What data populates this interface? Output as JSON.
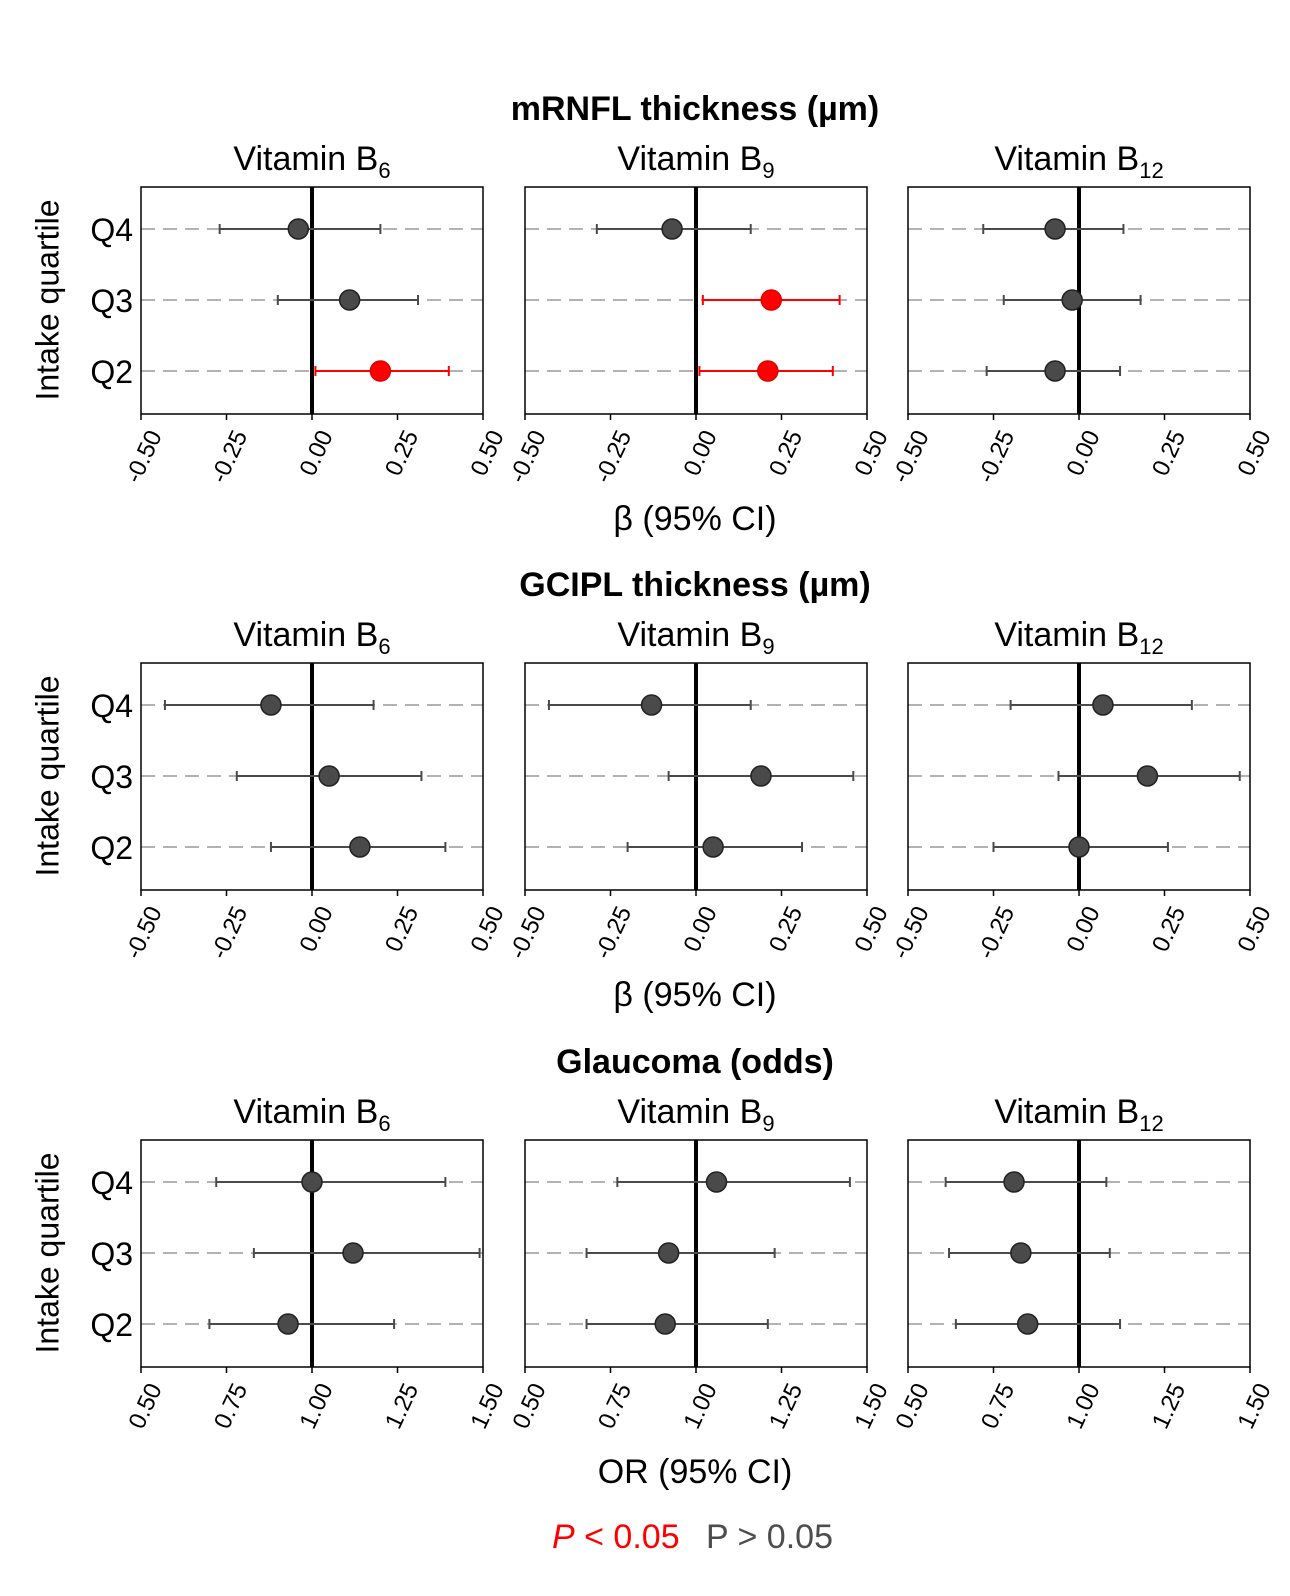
{
  "legend": {
    "sig_p": "P",
    "sig_rest": " < 0.05",
    "ns": "P > 0.05",
    "sig_color": "#ff0000",
    "ns_color": "#4a4a4a"
  },
  "y_axis_label": "Intake quartile",
  "chart_data": [
    {
      "type": "forest",
      "title": "mRNFL thickness (µm)",
      "xlabel": "β (95% CI)",
      "xlim": [
        -0.5,
        0.5
      ],
      "ref_line": 0,
      "xticks": [
        "-0.50",
        "-0.25",
        "0.00",
        "0.25",
        "0.50"
      ],
      "xtick_values": [
        -0.5,
        -0.25,
        0,
        0.25,
        0.5
      ],
      "categories": [
        "Q4",
        "Q3",
        "Q2"
      ],
      "facets": [
        {
          "main": "Vitamin B",
          "sub": "6",
          "points": [
            {
              "q": "Q4",
              "est": -0.04,
              "lo": -0.27,
              "hi": 0.2,
              "sig": false
            },
            {
              "q": "Q3",
              "est": 0.11,
              "lo": -0.1,
              "hi": 0.31,
              "sig": false
            },
            {
              "q": "Q2",
              "est": 0.2,
              "lo": 0.01,
              "hi": 0.4,
              "sig": true
            }
          ]
        },
        {
          "main": "Vitamin B",
          "sub": "9",
          "points": [
            {
              "q": "Q4",
              "est": -0.07,
              "lo": -0.29,
              "hi": 0.16,
              "sig": false
            },
            {
              "q": "Q3",
              "est": 0.22,
              "lo": 0.02,
              "hi": 0.42,
              "sig": true
            },
            {
              "q": "Q2",
              "est": 0.21,
              "lo": 0.01,
              "hi": 0.4,
              "sig": true
            }
          ]
        },
        {
          "main": "Vitamin B",
          "sub": "12",
          "points": [
            {
              "q": "Q4",
              "est": -0.07,
              "lo": -0.28,
              "hi": 0.13,
              "sig": false
            },
            {
              "q": "Q3",
              "est": -0.02,
              "lo": -0.22,
              "hi": 0.18,
              "sig": false
            },
            {
              "q": "Q2",
              "est": -0.07,
              "lo": -0.27,
              "hi": 0.12,
              "sig": false
            }
          ]
        }
      ]
    },
    {
      "type": "forest",
      "title": "GCIPL thickness (µm)",
      "xlabel": "β (95% CI)",
      "xlim": [
        -0.5,
        0.5
      ],
      "ref_line": 0,
      "xticks": [
        "-0.50",
        "-0.25",
        "0.00",
        "0.25",
        "0.50"
      ],
      "xtick_values": [
        -0.5,
        -0.25,
        0,
        0.25,
        0.5
      ],
      "categories": [
        "Q4",
        "Q3",
        "Q2"
      ],
      "facets": [
        {
          "main": "Vitamin B",
          "sub": "6",
          "points": [
            {
              "q": "Q4",
              "est": -0.12,
              "lo": -0.43,
              "hi": 0.18,
              "sig": false
            },
            {
              "q": "Q3",
              "est": 0.05,
              "lo": -0.22,
              "hi": 0.32,
              "sig": false
            },
            {
              "q": "Q2",
              "est": 0.14,
              "lo": -0.12,
              "hi": 0.39,
              "sig": false
            }
          ]
        },
        {
          "main": "Vitamin B",
          "sub": "9",
          "points": [
            {
              "q": "Q4",
              "est": -0.13,
              "lo": -0.43,
              "hi": 0.16,
              "sig": false
            },
            {
              "q": "Q3",
              "est": 0.19,
              "lo": -0.08,
              "hi": 0.46,
              "sig": false
            },
            {
              "q": "Q2",
              "est": 0.05,
              "lo": -0.2,
              "hi": 0.31,
              "sig": false
            }
          ]
        },
        {
          "main": "Vitamin B",
          "sub": "12",
          "points": [
            {
              "q": "Q4",
              "est": 0.07,
              "lo": -0.2,
              "hi": 0.33,
              "sig": false
            },
            {
              "q": "Q3",
              "est": 0.2,
              "lo": -0.06,
              "hi": 0.47,
              "sig": false
            },
            {
              "q": "Q2",
              "est": 0.0,
              "lo": -0.25,
              "hi": 0.26,
              "sig": false
            }
          ]
        }
      ]
    },
    {
      "type": "forest",
      "title": "Glaucoma (odds)",
      "xlabel": "OR (95% CI)",
      "xlim": [
        0.5,
        1.5
      ],
      "ref_line": 1,
      "xticks": [
        "0.50",
        "0.75",
        "1.00",
        "1.25",
        "1.50"
      ],
      "xtick_values": [
        0.5,
        0.75,
        1.0,
        1.25,
        1.5
      ],
      "categories": [
        "Q4",
        "Q3",
        "Q2"
      ],
      "facets": [
        {
          "main": "Vitamin B",
          "sub": "6",
          "points": [
            {
              "q": "Q4",
              "est": 1.0,
              "lo": 0.72,
              "hi": 1.39,
              "sig": false
            },
            {
              "q": "Q3",
              "est": 1.12,
              "lo": 0.83,
              "hi": 1.49,
              "sig": false
            },
            {
              "q": "Q2",
              "est": 0.93,
              "lo": 0.7,
              "hi": 1.24,
              "sig": false
            }
          ]
        },
        {
          "main": "Vitamin B",
          "sub": "9",
          "points": [
            {
              "q": "Q4",
              "est": 1.06,
              "lo": 0.77,
              "hi": 1.45,
              "sig": false
            },
            {
              "q": "Q3",
              "est": 0.92,
              "lo": 0.68,
              "hi": 1.23,
              "sig": false
            },
            {
              "q": "Q2",
              "est": 0.91,
              "lo": 0.68,
              "hi": 1.21,
              "sig": false
            }
          ]
        },
        {
          "main": "Vitamin B",
          "sub": "12",
          "points": [
            {
              "q": "Q4",
              "est": 0.81,
              "lo": 0.61,
              "hi": 1.08,
              "sig": false
            },
            {
              "q": "Q3",
              "est": 0.83,
              "lo": 0.62,
              "hi": 1.09,
              "sig": false
            },
            {
              "q": "Q2",
              "est": 0.85,
              "lo": 0.64,
              "hi": 1.12,
              "sig": false
            }
          ]
        }
      ]
    }
  ]
}
